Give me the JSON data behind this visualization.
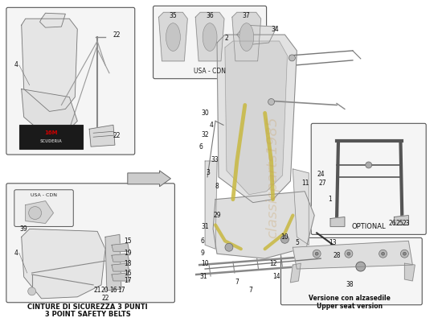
{
  "bg_color": "#f8f8f8",
  "watermark_text": "classicparts1985",
  "watermark_color": "#c8a060",
  "watermark_alpha": 0.3,
  "bottom_left_label_line1": "CINTURE DI SICUREZZA 3 PUNTI",
  "bottom_left_label_line2": "3 POINT SAFETY BELTS",
  "bottom_right_label_line1": "Versione con alzasedile",
  "bottom_right_label_line2": "Upper seat version",
  "optional_label": "OPTIONAL",
  "usa_cdn_label": "USA - CDN"
}
